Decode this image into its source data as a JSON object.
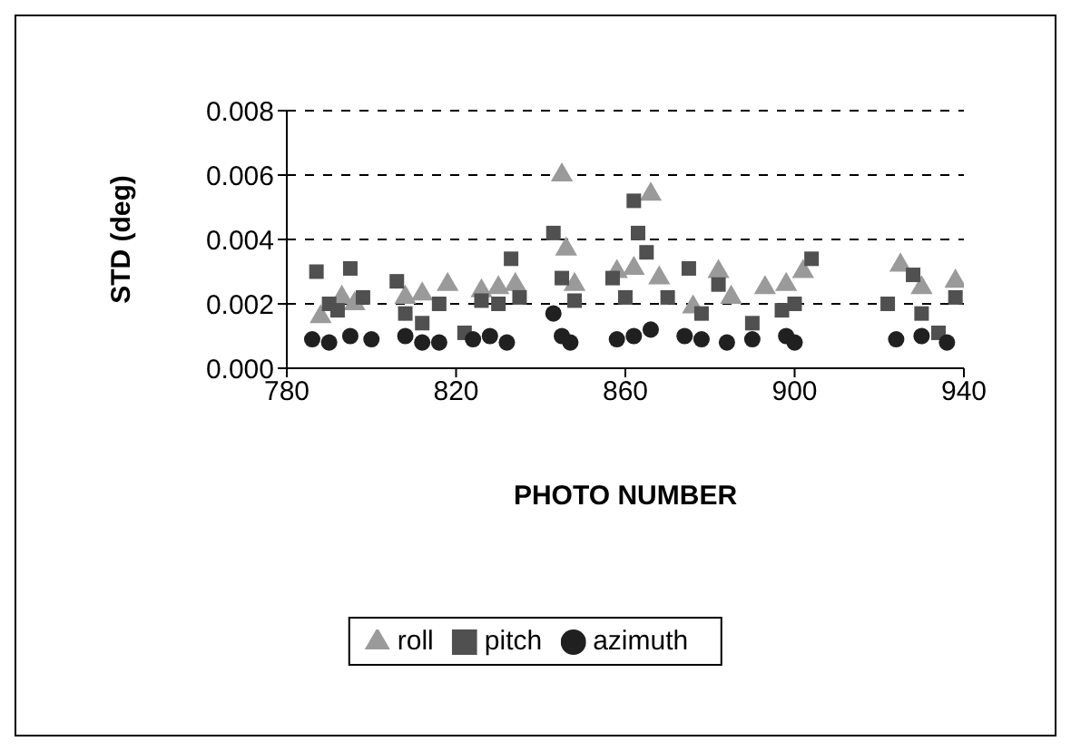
{
  "chart_data": {
    "type": "scatter",
    "xlabel": "PHOTO NUMBER",
    "ylabel": "STD (deg)",
    "xlim": [
      780,
      940
    ],
    "xticks": [
      780,
      820,
      860,
      900,
      940
    ],
    "ylim": [
      0,
      0.008
    ],
    "yticks": [
      {
        "value": 0,
        "label": "0.000"
      },
      0.002,
      0.004,
      0.006,
      0.008
    ],
    "grid": "y",
    "legend": "bottom",
    "series": [
      {
        "name": "roll",
        "color": "#9a9a9a",
        "marker": "triangle",
        "x": [
          788,
          793,
          796,
          808,
          812,
          818,
          826,
          830,
          834,
          845,
          846,
          848,
          858,
          862,
          866,
          868,
          876,
          882,
          885,
          893,
          898,
          902,
          925,
          930,
          938
        ],
        "values": [
          0.0016,
          0.0022,
          0.002,
          0.0022,
          0.0023,
          0.0026,
          0.0024,
          0.0025,
          0.0026,
          0.006,
          0.0037,
          0.0026,
          0.003,
          0.0031,
          0.0054,
          0.0028,
          0.0019,
          0.003,
          0.0022,
          0.0025,
          0.0026,
          0.003,
          0.0032,
          0.0025,
          0.0027
        ]
      },
      {
        "name": "pitch",
        "color": "#505050",
        "marker": "square",
        "x": [
          787,
          790,
          792,
          795,
          798,
          806,
          808,
          812,
          816,
          822,
          826,
          830,
          833,
          835,
          843,
          845,
          848,
          857,
          860,
          862,
          863,
          865,
          870,
          875,
          878,
          882,
          890,
          897,
          900,
          904,
          922,
          928,
          930,
          934,
          938
        ],
        "values": [
          0.003,
          0.002,
          0.0018,
          0.0031,
          0.0022,
          0.0027,
          0.0017,
          0.0014,
          0.002,
          0.0011,
          0.0021,
          0.002,
          0.0034,
          0.0022,
          0.0042,
          0.0028,
          0.0021,
          0.0028,
          0.0022,
          0.0052,
          0.0042,
          0.0036,
          0.0022,
          0.0031,
          0.0017,
          0.0026,
          0.0014,
          0.0018,
          0.002,
          0.0034,
          0.002,
          0.0029,
          0.0017,
          0.0011,
          0.0022
        ]
      },
      {
        "name": "azimuth",
        "color": "#202020",
        "marker": "circle",
        "x": [
          786,
          790,
          795,
          800,
          808,
          812,
          816,
          824,
          828,
          832,
          843,
          845,
          847,
          858,
          862,
          866,
          874,
          878,
          884,
          890,
          898,
          900,
          924,
          930,
          936
        ],
        "values": [
          0.0009,
          0.0008,
          0.001,
          0.0009,
          0.001,
          0.0008,
          0.0008,
          0.0009,
          0.001,
          0.0008,
          0.0017,
          0.001,
          0.0008,
          0.0009,
          0.001,
          0.0012,
          0.001,
          0.0009,
          0.0008,
          0.0009,
          0.001,
          0.0008,
          0.0009,
          0.001,
          0.0008
        ]
      }
    ]
  }
}
